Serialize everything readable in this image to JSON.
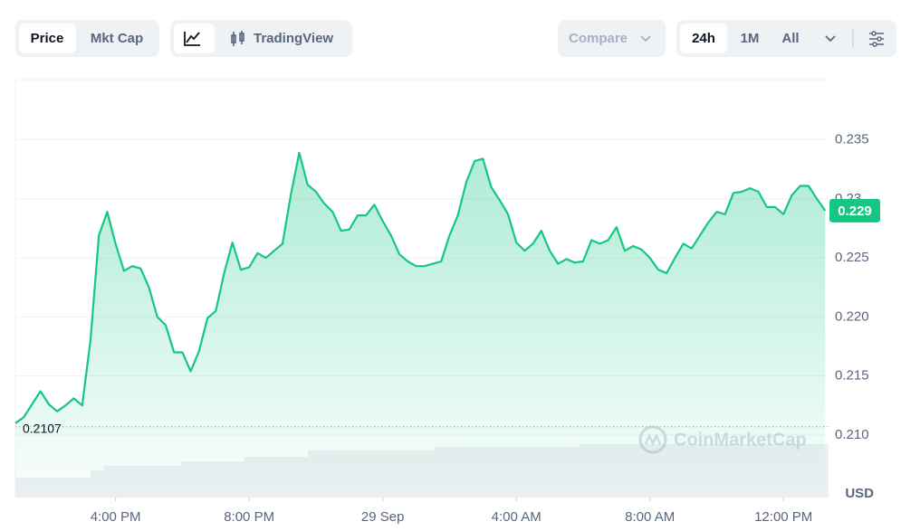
{
  "toolbar": {
    "price": "Price",
    "mkt_cap": "Mkt Cap",
    "tradingview": "TradingView",
    "compare": "Compare",
    "range_24h": "24h",
    "range_1m": "1M",
    "range_all": "All"
  },
  "chart_data": {
    "type": "line",
    "color": "#16c784",
    "watermark": "CoinMarketCap",
    "currency": "USD",
    "current_price": 0.229,
    "open_price": 0.2107,
    "x": [
      13,
      13.25,
      13.5,
      13.75,
      14,
      14.25,
      14.5,
      14.75,
      15,
      15.25,
      15.5,
      15.75,
      16,
      16.25,
      16.5,
      16.75,
      17,
      17.25,
      17.5,
      17.75,
      18,
      18.25,
      18.5,
      18.75,
      19,
      19.25,
      19.5,
      19.75,
      20,
      20.25,
      20.5,
      20.75,
      21,
      21.25,
      21.5,
      21.75,
      22,
      22.25,
      22.5,
      22.75,
      23,
      23.25,
      23.5,
      23.75,
      24,
      24.25,
      24.5,
      24.75,
      25,
      25.25,
      25.5,
      25.75,
      26,
      26.25,
      26.5,
      26.75,
      27,
      27.25,
      27.5,
      27.75,
      28,
      28.25,
      28.5,
      28.75,
      29,
      29.25,
      29.5,
      29.75,
      30,
      30.25,
      30.5,
      30.75,
      31,
      31.25,
      31.5,
      31.75,
      32,
      32.25,
      32.5,
      32.75,
      33,
      33.25,
      33.5,
      33.75,
      34,
      34.25,
      34.5,
      34.75,
      35,
      35.25,
      35.5,
      35.75,
      36,
      36.25,
      36.5,
      36.75,
      37,
      37.25
    ],
    "values": [
      0.211,
      0.2115,
      0.2126,
      0.2137,
      0.2126,
      0.212,
      0.2125,
      0.2131,
      0.2125,
      0.2181,
      0.2269,
      0.2289,
      0.2262,
      0.2239,
      0.2243,
      0.2241,
      0.2225,
      0.22,
      0.2193,
      0.217,
      0.217,
      0.2154,
      0.2171,
      0.2199,
      0.2205,
      0.2237,
      0.2263,
      0.224,
      0.2242,
      0.2254,
      0.225,
      0.2256,
      0.2262,
      0.2304,
      0.2339,
      0.2312,
      0.2306,
      0.2296,
      0.2289,
      0.2273,
      0.2274,
      0.2286,
      0.2286,
      0.2295,
      0.2281,
      0.2269,
      0.2253,
      0.2247,
      0.2243,
      0.2243,
      0.2245,
      0.2247,
      0.2269,
      0.2286,
      0.2314,
      0.2332,
      0.2334,
      0.231,
      0.2299,
      0.2287,
      0.2263,
      0.2256,
      0.2262,
      0.2273,
      0.2256,
      0.2245,
      0.2249,
      0.2246,
      0.2247,
      0.2265,
      0.2262,
      0.2265,
      0.2276,
      0.2256,
      0.226,
      0.2257,
      0.225,
      0.224,
      0.2237,
      0.225,
      0.2262,
      0.2258,
      0.2269,
      0.228,
      0.2289,
      0.2287,
      0.2305,
      0.2306,
      0.2309,
      0.2306,
      0.2293,
      0.2293,
      0.2287,
      0.2303,
      0.2311,
      0.2311,
      0.23,
      0.229
    ],
    "xlim": [
      13,
      37.35
    ],
    "xticks": [
      {
        "value": 16,
        "label": "4:00 PM"
      },
      {
        "value": 20,
        "label": "8:00 PM"
      },
      {
        "value": 24,
        "label": "29 Sep"
      },
      {
        "value": 28,
        "label": "4:00 AM"
      },
      {
        "value": 32,
        "label": "8:00 AM"
      },
      {
        "value": 36,
        "label": "12:00 PM"
      }
    ],
    "ylim": [
      0.2047,
      0.2401
    ],
    "yticks": [
      {
        "value": 0.21,
        "label": "0.210"
      },
      0.215,
      {
        "value": 0.22,
        "label": "0.220"
      },
      0.225,
      0.23,
      0.235
    ],
    "grid": true
  }
}
